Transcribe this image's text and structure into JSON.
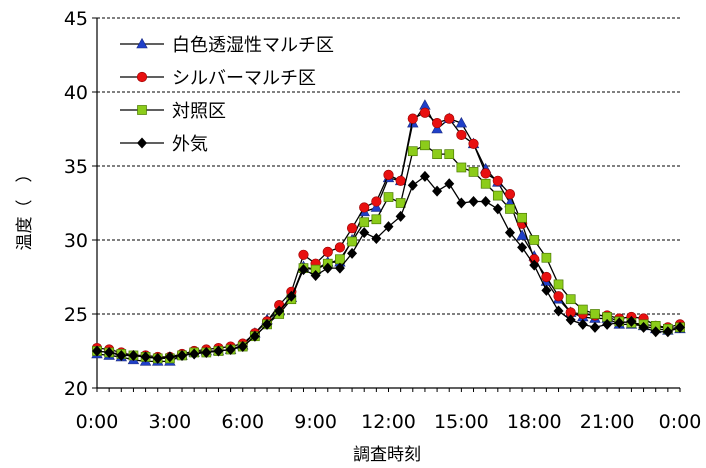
{
  "chart_data": {
    "type": "line",
    "xlabel": "調査時刻",
    "ylabel": "温度（　）",
    "ylim": [
      20,
      45
    ],
    "yticks": [
      20,
      25,
      30,
      35,
      40,
      45
    ],
    "xlim": [
      0,
      48
    ],
    "xtick_values": [
      0,
      6,
      12,
      18,
      24,
      30,
      36,
      42,
      48
    ],
    "xtick_labels": [
      "0:00",
      "3:00",
      "6:00",
      "9:00",
      "12:00",
      "15:00",
      "18:00",
      "21:00",
      "0:00"
    ],
    "grid": "horizontal-dashed",
    "legend_position": "top-left",
    "x": [
      0,
      1,
      2,
      3,
      4,
      5,
      6,
      7,
      8,
      9,
      10,
      11,
      12,
      13,
      14,
      15,
      16,
      17,
      18,
      19,
      20,
      21,
      22,
      23,
      24,
      25,
      26,
      27,
      28,
      29,
      30,
      31,
      32,
      33,
      34,
      35,
      36,
      37,
      38,
      39,
      40,
      41,
      42,
      43,
      44,
      45,
      46,
      47,
      48
    ],
    "series": [
      {
        "name": "白色透湿性マルチ区",
        "color": "#1f3fc8",
        "marker": "triangle",
        "values": [
          22.3,
          22.2,
          22.1,
          21.9,
          21.8,
          21.8,
          21.8,
          22.2,
          22.4,
          22.5,
          22.5,
          22.6,
          22.9,
          23.7,
          24.6,
          25.2,
          26.1,
          28.2,
          28.0,
          28.5,
          28.5,
          30.0,
          31.9,
          32.2,
          34.2,
          34.0,
          37.9,
          39.1,
          37.5,
          38.2,
          37.9,
          36.5,
          34.8,
          33.9,
          32.5,
          30.3,
          28.9,
          27.2,
          26.0,
          25.1,
          24.8,
          24.7,
          24.7,
          24.3,
          24.3,
          24.2,
          24.0,
          23.9,
          24.0
        ]
      },
      {
        "name": "シルバーマルチ区",
        "color": "#e81010",
        "marker": "circle",
        "values": [
          22.7,
          22.6,
          22.4,
          22.2,
          22.2,
          22.1,
          22.1,
          22.3,
          22.5,
          22.6,
          22.7,
          22.8,
          23.0,
          23.7,
          24.5,
          25.6,
          26.5,
          29.0,
          28.4,
          29.2,
          29.5,
          30.8,
          32.2,
          32.6,
          34.4,
          34.0,
          38.2,
          38.6,
          37.9,
          38.2,
          37.1,
          36.5,
          34.5,
          34.0,
          33.1,
          31.1,
          28.7,
          27.5,
          26.2,
          25.1,
          25.0,
          24.9,
          24.9,
          24.7,
          24.8,
          24.7,
          24.2,
          24.1,
          24.3
        ]
      },
      {
        "name": "対照区",
        "color": "#8ccc1a",
        "marker": "square",
        "values": [
          22.5,
          22.4,
          22.3,
          22.2,
          22.1,
          22.0,
          22.0,
          22.2,
          22.4,
          22.4,
          22.5,
          22.6,
          22.8,
          23.5,
          24.3,
          25.0,
          26.0,
          28.1,
          28.0,
          28.4,
          28.7,
          29.9,
          31.2,
          31.4,
          32.9,
          32.5,
          36.0,
          36.4,
          35.8,
          35.8,
          34.9,
          34.6,
          33.8,
          33.0,
          32.1,
          31.5,
          30.0,
          28.8,
          27.0,
          26.0,
          25.3,
          25.0,
          24.8,
          24.5,
          24.4,
          24.3,
          24.2,
          24.0,
          24.1
        ]
      },
      {
        "name": "外気",
        "color": "#000000",
        "marker": "diamond",
        "values": [
          22.5,
          22.4,
          22.2,
          22.2,
          22.1,
          22.0,
          22.1,
          22.2,
          22.3,
          22.4,
          22.5,
          22.6,
          22.8,
          23.5,
          24.3,
          25.2,
          26.2,
          28.0,
          27.6,
          28.1,
          28.1,
          29.1,
          30.5,
          30.1,
          30.9,
          31.6,
          33.7,
          34.3,
          33.3,
          33.8,
          32.5,
          32.6,
          32.6,
          32.1,
          30.5,
          29.5,
          28.3,
          26.6,
          25.2,
          24.6,
          24.3,
          24.1,
          24.3,
          24.4,
          24.5,
          24.1,
          23.8,
          23.8,
          24.1
        ]
      }
    ]
  }
}
